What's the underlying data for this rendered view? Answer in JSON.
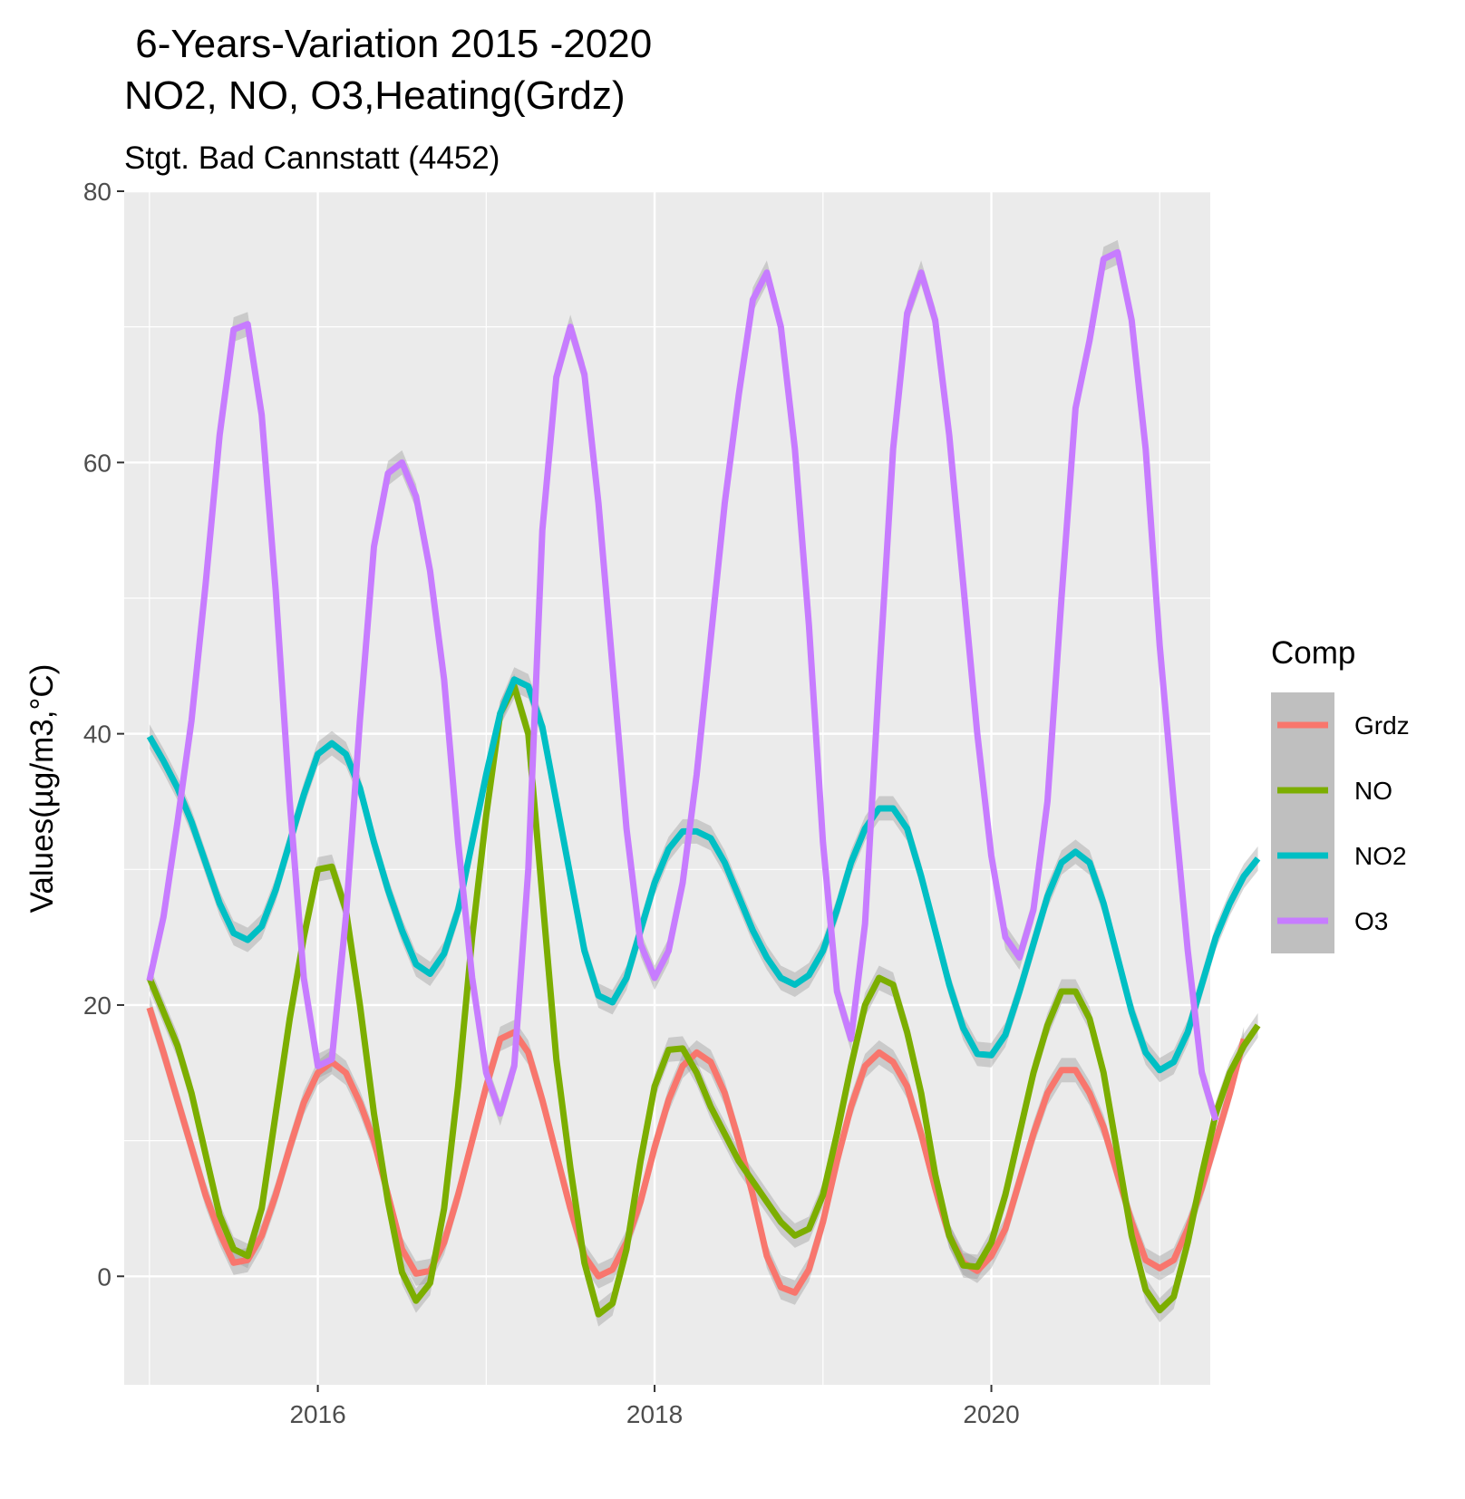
{
  "chart_data": {
    "type": "line",
    "title_line1": " 6-Years-Variation 2015 -2020",
    "title_line2": "NO2, NO, O3,Heating(Grdz)",
    "subtitle": "Stgt. Bad Cannstatt (4452)",
    "xlabel": "",
    "ylabel": "Values(µg/m3,°C)",
    "xlim": [
      2014.85,
      2021.3
    ],
    "ylim": [
      -8,
      80
    ],
    "x_ticks": [
      {
        "value": 2016,
        "label": "2016"
      },
      {
        "value": 2018,
        "label": "2018"
      },
      {
        "value": 2020,
        "label": "2020"
      }
    ],
    "y_ticks": [
      {
        "value": 0,
        "label": "0"
      },
      {
        "value": 20,
        "label": "20"
      },
      {
        "value": 40,
        "label": "40"
      },
      {
        "value": 60,
        "label": "60"
      },
      {
        "value": 80,
        "label": "80"
      }
    ],
    "x_start": 2015.0,
    "x_step": 0.08333,
    "grid": true,
    "legend": {
      "title": "Comp",
      "placement": "right"
    },
    "series": [
      {
        "name": "Grdz",
        "color": "#F8766D",
        "values": [
          19.8,
          16.5,
          13.0,
          9.5,
          6.0,
          3.2,
          1.0,
          1.2,
          3.0,
          6.0,
          9.5,
          12.8,
          15.0,
          15.8,
          15.0,
          12.8,
          10.0,
          6.0,
          2.0,
          0.2,
          0.4,
          2.5,
          6.0,
          10.0,
          14.0,
          17.5,
          18.0,
          16.5,
          13.0,
          9.0,
          5.0,
          1.5,
          0.0,
          0.5,
          2.5,
          5.5,
          9.5,
          13.0,
          15.5,
          16.5,
          15.8,
          13.5,
          10.0,
          6.0,
          1.5,
          -0.8,
          -1.2,
          0.5,
          4.0,
          8.5,
          12.5,
          15.5,
          16.5,
          15.8,
          14.0,
          10.5,
          6.5,
          3.0,
          1.0,
          0.4,
          1.5,
          3.5,
          7.0,
          10.5,
          13.5,
          15.2,
          15.2,
          13.5,
          11.0,
          7.5,
          4.0,
          1.2,
          0.6,
          1.2,
          3.5,
          6.5,
          10.0,
          13.5,
          17.5
        ]
      },
      {
        "name": "NO",
        "color": "#7CAE00",
        "values": [
          22.0,
          19.5,
          17.0,
          13.5,
          9.0,
          4.5,
          2.0,
          1.5,
          5.0,
          12.0,
          19.0,
          25.0,
          30.0,
          30.2,
          27.0,
          20.0,
          12.0,
          5.5,
          0.3,
          -1.8,
          -0.5,
          5.0,
          14.0,
          25.0,
          34.0,
          41.5,
          43.5,
          40.0,
          28.0,
          16.0,
          8.0,
          1.0,
          -2.8,
          -2.0,
          2.0,
          8.5,
          14.0,
          16.7,
          16.8,
          15.0,
          12.5,
          10.5,
          8.5,
          7.0,
          5.5,
          4.0,
          3.0,
          3.5,
          6.0,
          10.5,
          15.5,
          20.0,
          22.0,
          21.5,
          18.0,
          13.5,
          7.5,
          3.0,
          0.8,
          0.7,
          2.5,
          6.0,
          10.5,
          15.0,
          18.5,
          21.0,
          21.0,
          19.0,
          15.0,
          9.0,
          3.0,
          -1.0,
          -2.5,
          -1.5,
          2.5,
          7.5,
          12.0,
          15.0,
          17.0,
          18.5
        ]
      },
      {
        "name": "NO2",
        "color": "#00BFC4",
        "values": [
          39.8,
          38.0,
          36.0,
          33.5,
          30.5,
          27.5,
          25.3,
          24.8,
          25.8,
          28.5,
          32.0,
          35.5,
          38.5,
          39.3,
          38.5,
          36.0,
          32.0,
          28.5,
          25.5,
          23.0,
          22.3,
          23.8,
          27.0,
          32.0,
          37.0,
          41.5,
          44.0,
          43.5,
          40.5,
          35.0,
          29.5,
          24.0,
          20.7,
          20.2,
          22.0,
          25.5,
          29.0,
          31.5,
          32.8,
          32.8,
          32.3,
          30.5,
          28.0,
          25.5,
          23.5,
          22.0,
          21.5,
          22.2,
          24.0,
          27.0,
          30.5,
          33.0,
          34.5,
          34.5,
          33.0,
          29.5,
          25.5,
          21.5,
          18.3,
          16.4,
          16.3,
          17.8,
          21.0,
          24.5,
          28.0,
          30.5,
          31.3,
          30.5,
          27.5,
          23.5,
          19.5,
          16.5,
          15.2,
          15.8,
          18.0,
          21.5,
          25.0,
          27.5,
          29.5,
          30.8
        ]
      },
      {
        "name": "O3",
        "color": "#C77CFF",
        "values": [
          21.8,
          26.5,
          33.5,
          41.0,
          51.0,
          62.0,
          69.8,
          70.2,
          63.5,
          50.5,
          35.0,
          22.0,
          15.5,
          16.0,
          26.5,
          41.0,
          53.8,
          59.2,
          60.0,
          57.5,
          52.0,
          44.0,
          32.0,
          22.0,
          15.0,
          12.0,
          15.5,
          30.0,
          55.0,
          66.3,
          70.0,
          66.5,
          57.0,
          45.0,
          33.0,
          24.5,
          22.0,
          24.0,
          29.0,
          37.0,
          47.0,
          57.0,
          65.0,
          72.0,
          74.0,
          70.0,
          61.0,
          48.0,
          32.0,
          21.0,
          17.5,
          26.0,
          44.0,
          61.0,
          71.0,
          74.0,
          70.5,
          62.0,
          51.0,
          40.0,
          31.0,
          25.0,
          23.5,
          27.0,
          35.0,
          50.0,
          64.0,
          69.0,
          75.0,
          75.5,
          70.5,
          61.0,
          46.5,
          35.0,
          24.0,
          15.0,
          11.5
        ]
      }
    ]
  }
}
